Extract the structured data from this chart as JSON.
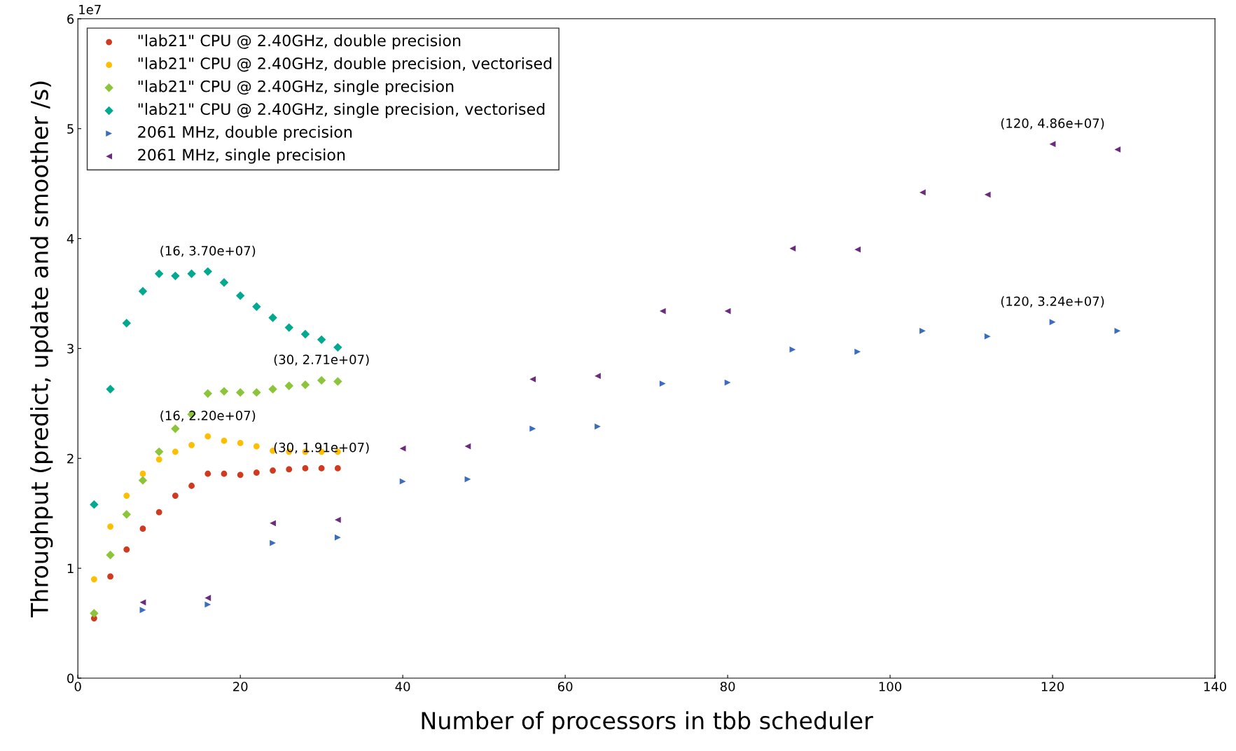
{
  "chart_data": {
    "type": "scatter",
    "xlabel": "Number of processors in tbb scheduler",
    "ylabel": "Throughput (predict, update and smoother /s)",
    "xlim": [
      0,
      140
    ],
    "xticks": [
      0,
      20,
      40,
      60,
      80,
      100,
      120,
      140
    ],
    "ylim": [
      0,
      6
    ],
    "yticks": [
      0,
      1,
      2,
      3,
      4,
      5,
      6
    ],
    "grid": false,
    "legend": "top left",
    "annotations": [
      "1e7",
      {
        "text": "(16, 3.70e+07)",
        "x": 16,
        "y": 3.7
      },
      {
        "text": "(30, 2.71e+07)",
        "x": 30,
        "y": 2.71
      },
      {
        "text": "(16, 2.20e+07)",
        "x": 16,
        "y": 2.2
      },
      {
        "text": "(30, 1.91e+07)",
        "x": 30,
        "y": 1.91
      },
      {
        "text": "(120, 4.86e+07)",
        "x": 120,
        "y": 4.86
      },
      {
        "text": "(120, 3.24e+07)",
        "x": 120,
        "y": 3.24
      }
    ],
    "series": [
      {
        "name": "\"lab21\" CPU @ 2.40GHz, double precision",
        "color": "#d03a1e",
        "marker": "circle",
        "x": [
          2,
          4,
          6,
          8,
          10,
          12,
          14,
          16,
          18,
          20,
          22,
          24,
          26,
          28,
          30,
          32
        ],
        "values": [
          0.545,
          0.925,
          1.17,
          1.36,
          1.51,
          1.66,
          1.75,
          1.86,
          1.86,
          1.85,
          1.87,
          1.89,
          1.9,
          1.91,
          1.91,
          1.91
        ]
      },
      {
        "name": "\"lab21\" CPU @ 2.40GHz, double precision, vectorised",
        "color": "#ffbe00",
        "marker": "circle",
        "x": [
          2,
          4,
          6,
          8,
          10,
          12,
          14,
          16,
          18,
          20,
          22,
          24,
          26,
          28,
          30,
          32
        ],
        "values": [
          0.9,
          1.38,
          1.66,
          1.86,
          1.99,
          2.06,
          2.12,
          2.2,
          2.16,
          2.14,
          2.11,
          2.07,
          2.06,
          2.06,
          2.06,
          2.06
        ]
      },
      {
        "name": "\"lab21\" CPU @ 2.40GHz, single precision",
        "color": "#8cc43a",
        "marker": "diamond",
        "x": [
          2,
          4,
          6,
          8,
          10,
          12,
          14,
          16,
          18,
          20,
          22,
          24,
          26,
          28,
          30,
          32
        ],
        "values": [
          0.59,
          1.12,
          1.49,
          1.8,
          2.06,
          2.27,
          2.4,
          2.59,
          2.61,
          2.6,
          2.6,
          2.63,
          2.66,
          2.67,
          2.71,
          2.7
        ]
      },
      {
        "name": "\"lab21\" CPU @ 2.40GHz, single precision, vectorised",
        "color": "#00a98f",
        "marker": "diamond",
        "x": [
          2,
          4,
          6,
          8,
          10,
          12,
          14,
          16,
          18,
          20,
          22,
          24,
          26,
          28,
          30,
          32
        ],
        "values": [
          1.58,
          2.63,
          3.23,
          3.52,
          3.68,
          3.66,
          3.68,
          3.7,
          3.6,
          3.48,
          3.38,
          3.28,
          3.19,
          3.13,
          3.08,
          3.01
        ]
      },
      {
        "name": "2061 MHz, double precision",
        "color": "#3b6cc1",
        "marker": "triangle_right",
        "x": [
          8,
          16,
          24,
          32,
          40,
          48,
          56,
          64,
          72,
          80,
          88,
          96,
          104,
          112,
          120,
          128
        ],
        "values": [
          0.62,
          0.67,
          1.23,
          1.28,
          1.79,
          1.81,
          2.27,
          2.29,
          2.68,
          2.69,
          2.99,
          2.97,
          3.16,
          3.11,
          3.24,
          3.16
        ]
      },
      {
        "name": "2061 MHz, single precision",
        "color": "#6b2c7d",
        "marker": "triangle_left",
        "x": [
          8,
          16,
          24,
          32,
          40,
          48,
          56,
          64,
          72,
          80,
          88,
          96,
          104,
          112,
          120,
          128
        ],
        "values": [
          0.69,
          0.73,
          1.41,
          1.44,
          2.09,
          2.11,
          2.72,
          2.75,
          3.34,
          3.34,
          3.91,
          3.9,
          4.42,
          4.4,
          4.86,
          4.81
        ]
      }
    ]
  }
}
